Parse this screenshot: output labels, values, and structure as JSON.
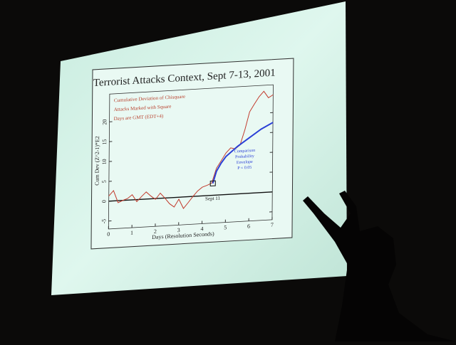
{
  "chart_data": {
    "type": "line",
    "title": "Terrorist Attacks Context, Sept 7-13, 2001",
    "x_label": "Days (Resolution Seconds)",
    "y_label": "Cum Dev (Z^2-1)*E2",
    "annotations": [
      "Cumulative Deviation of Chisquare",
      "Attacks Marked with Square",
      "Days are GMT (EDT+4)"
    ],
    "envelope_label": [
      "Comparison",
      "Probability",
      "Envelope",
      "P = 0.05"
    ],
    "xlim": [
      0,
      7
    ],
    "xticks": [
      0,
      1,
      2,
      3,
      4,
      5,
      6,
      7
    ],
    "ylim": [
      -7,
      27
    ],
    "yticks": [
      -5,
      0,
      5,
      10,
      15,
      20
    ],
    "series": [
      {
        "color": "#c23a2c",
        "x": [
          0,
          0.2,
          0.4,
          0.6,
          0.8,
          1.0,
          1.2,
          1.4,
          1.6,
          1.8,
          2.0,
          2.2,
          2.4,
          2.6,
          2.8,
          3.0,
          3.2,
          3.4,
          3.6,
          3.8,
          4.0,
          4.2,
          4.4,
          4.6,
          4.8,
          5.0,
          5.2,
          5.4,
          5.6,
          5.8,
          6.0,
          6.2,
          6.4,
          6.6,
          6.8,
          7.0
        ],
        "values": [
          1.3,
          2.6,
          -0.5,
          0,
          0.4,
          1.3,
          -0.5,
          0.7,
          1.8,
          0.7,
          -0.2,
          1.3,
          0,
          -1.5,
          -2.4,
          -0.5,
          -2.9,
          -1.5,
          0,
          1.3,
          2.2,
          2.6,
          3.1,
          6.8,
          8.6,
          10.5,
          11.7,
          11.4,
          12.3,
          16,
          20.5,
          22.4,
          24.2,
          25.5,
          23.8,
          24.5
        ]
      },
      {
        "color": "#2a3fd6",
        "x": [
          4.45,
          4.6,
          4.8,
          5.0,
          5.5,
          6.0,
          6.5,
          7.0
        ],
        "values": [
          3,
          6,
          8,
          9.6,
          12,
          14,
          16,
          17.5
        ]
      }
    ],
    "marker": {
      "label": "Sept 11",
      "x": 4.45,
      "y": 3
    }
  }
}
